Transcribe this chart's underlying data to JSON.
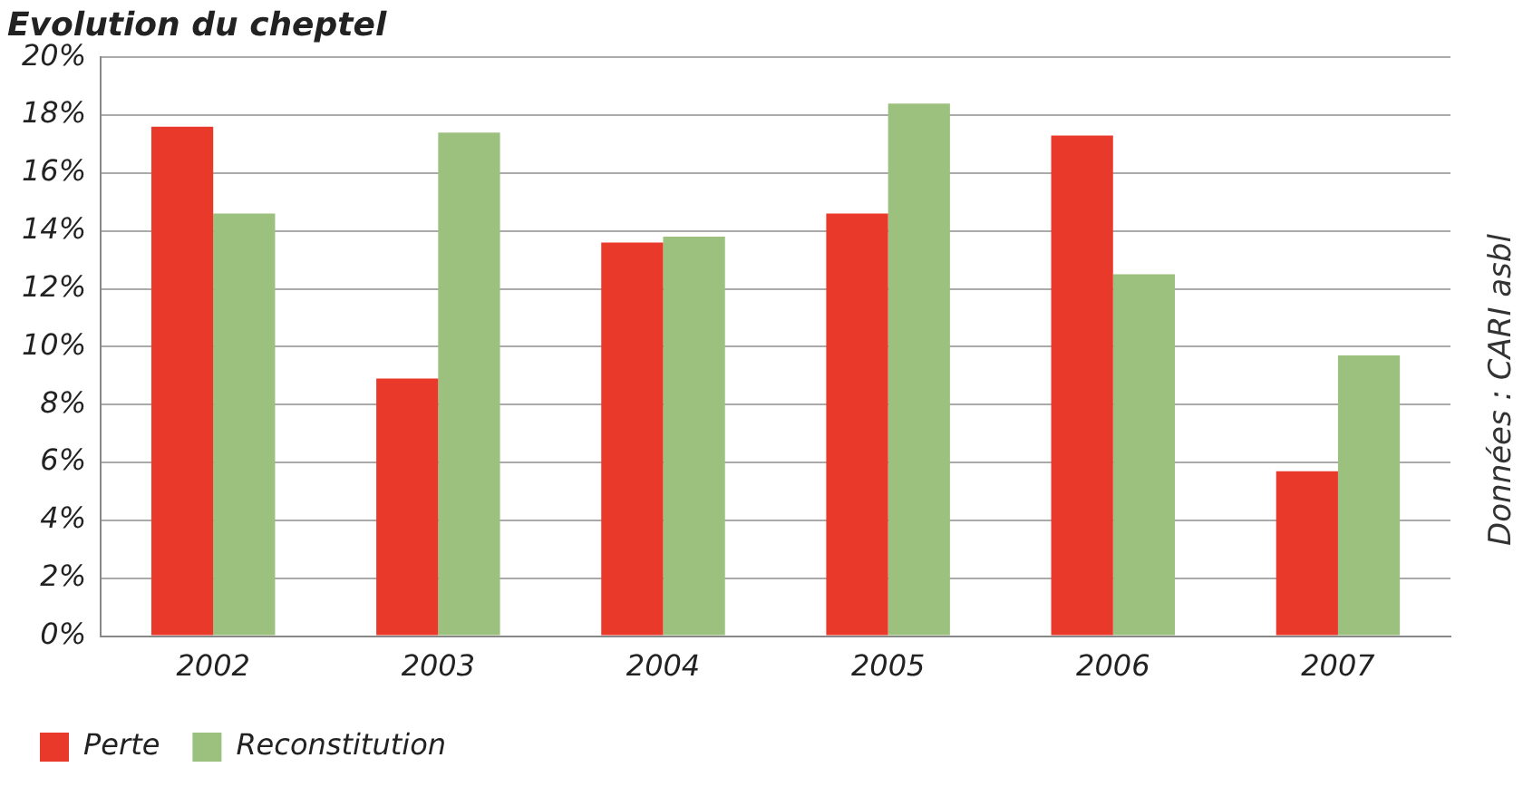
{
  "chart_data": {
    "type": "bar",
    "title": "Evolution du cheptel",
    "categories": [
      "2002",
      "2003",
      "2004",
      "2005",
      "2006",
      "2007"
    ],
    "series": [
      {
        "name": "Perte",
        "color": "#e8392a",
        "values": [
          17.6,
          8.9,
          13.6,
          14.6,
          17.3,
          5.7
        ]
      },
      {
        "name": "Reconstitution",
        "color": "#9cc17e",
        "values": [
          14.6,
          17.4,
          13.8,
          18.4,
          12.5,
          9.7
        ]
      }
    ],
    "ylim": [
      0,
      20
    ],
    "yticks": [
      {
        "value": 0,
        "label": "0%"
      },
      {
        "value": 2,
        "label": "2%"
      },
      {
        "value": 4,
        "label": "4%"
      },
      {
        "value": 6,
        "label": "6%"
      },
      {
        "value": 8,
        "label": "8%"
      },
      {
        "value": 10,
        "label": "10%"
      },
      {
        "value": 12,
        "label": "12%"
      },
      {
        "value": 14,
        "label": "14%"
      },
      {
        "value": 16,
        "label": "16%"
      },
      {
        "value": 18,
        "label": "18%"
      },
      {
        "value": 20,
        "label": "20%"
      }
    ],
    "grid": "y",
    "legend": "bottom left",
    "annotations": [
      "Données : CARI asbl"
    ]
  }
}
